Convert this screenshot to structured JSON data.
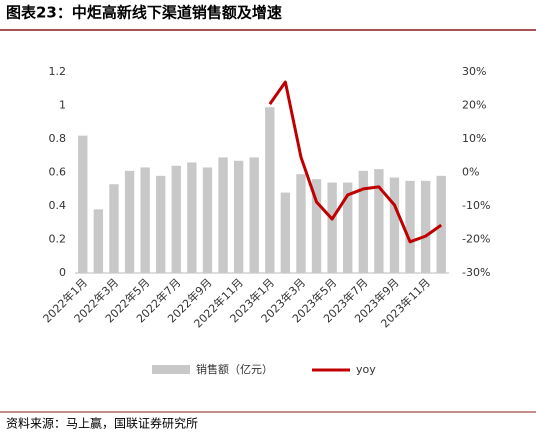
{
  "chart_data": {
    "type": "bar-line",
    "title": "图表23：中炬高新线下渠道销售额及增速",
    "source": "资料来源：马上赢，国联证券研究所",
    "categories": [
      "2022年1月",
      null,
      "2022年3月",
      null,
      "2022年5月",
      null,
      "2022年7月",
      null,
      "2022年9月",
      null,
      "2022年11月",
      null,
      "2023年1月",
      null,
      "2023年3月",
      null,
      "2023年5月",
      null,
      "2023年7月",
      null,
      "2023年9月",
      null,
      "2023年11月",
      null
    ],
    "series": [
      {
        "name": "销售额（亿元）",
        "color": "#c8c8c8",
        "type": "bar",
        "values": [
          0.82,
          0.38,
          0.53,
          0.61,
          0.63,
          0.58,
          0.64,
          0.66,
          0.63,
          0.69,
          0.67,
          0.69,
          0.99,
          0.48,
          0.59,
          0.56,
          0.54,
          0.54,
          0.61,
          0.62,
          0.57,
          0.55,
          0.55,
          0.58
        ]
      },
      {
        "name": "yoy",
        "color": "#c00000",
        "type": "line",
        "axis": "y2",
        "values": [
          null,
          null,
          null,
          null,
          null,
          null,
          null,
          null,
          null,
          null,
          null,
          null,
          20.4,
          27,
          4.6,
          -8.8,
          -13.9,
          -6.7,
          -4.9,
          -4.3,
          -9.7,
          -20.7,
          -19,
          -15.7
        ]
      }
    ],
    "ylim": [
      0,
      1.2
    ],
    "yticks": [
      0,
      0.2,
      0.4,
      0.6,
      0.8,
      1,
      1.2
    ],
    "y2lim": [
      -30,
      30
    ],
    "y2ticks": [
      {
        "value": -30,
        "label": "-30%"
      },
      {
        "value": -20,
        "label": "-20%"
      },
      {
        "value": -10,
        "label": "-10%"
      },
      {
        "value": 0,
        "label": "0%"
      },
      {
        "value": 10,
        "label": "10%"
      },
      {
        "value": 20,
        "label": "20%"
      },
      {
        "value": 30,
        "label": "30%"
      }
    ],
    "legend": "bottom"
  }
}
